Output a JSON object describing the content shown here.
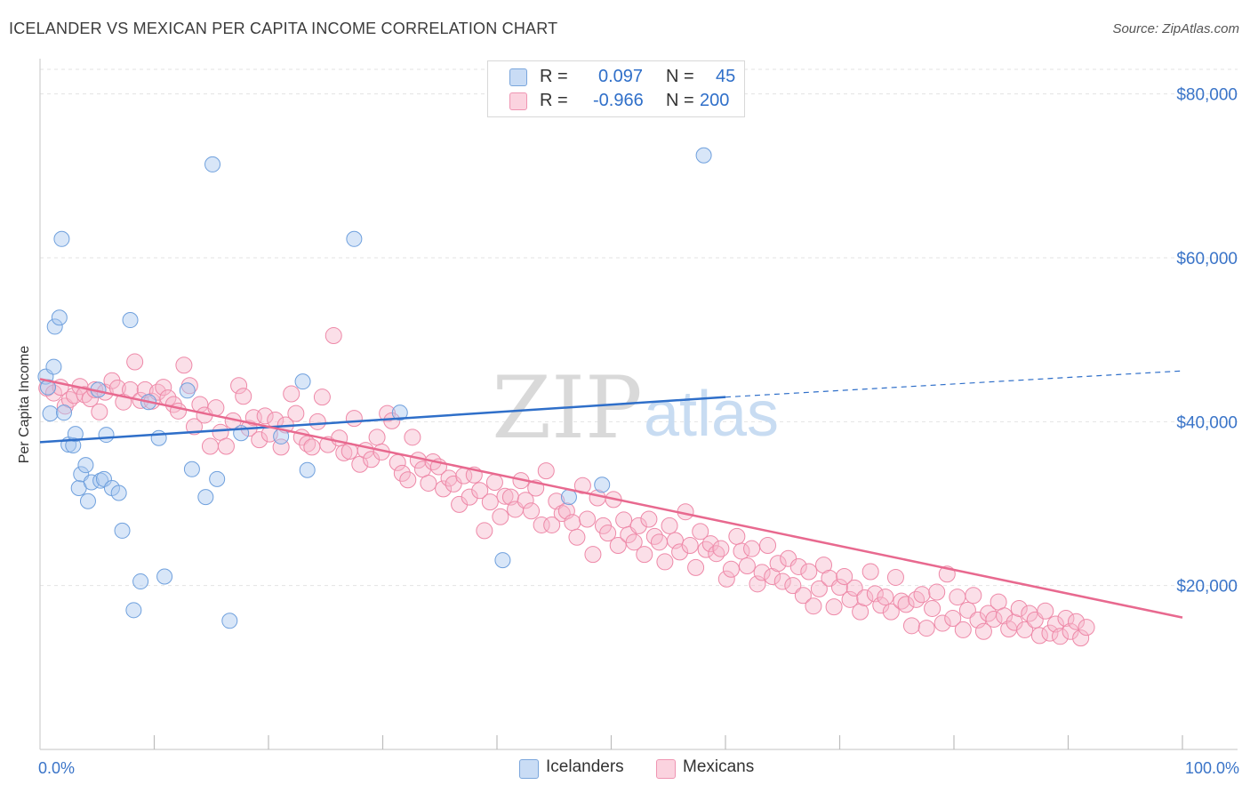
{
  "header": {
    "title": "ICELANDER VS MEXICAN PER CAPITA INCOME CORRELATION CHART",
    "source": "Source: ZipAtlas.com"
  },
  "stats": [
    {
      "label": "R =",
      "r": "0.097",
      "n_label": "N =",
      "n": "45",
      "color": "#a9c8f0"
    },
    {
      "label": "R =",
      "r": "-0.966",
      "n_label": "N =",
      "n": "200",
      "color": "#f6b8cc"
    }
  ],
  "legend": [
    {
      "name": "Icelanders",
      "color": "#a9c8f0"
    },
    {
      "name": "Mexicans",
      "color": "#f6b8cc"
    }
  ],
  "watermark": {
    "zip": "ZIP",
    "atlas": "atlas"
  },
  "chart_data": {
    "type": "scatter",
    "title": "ICELANDER VS MEXICAN PER CAPITA INCOME CORRELATION CHART",
    "xlabel": "",
    "ylabel": "Per Capita Income",
    "xlim": [
      0,
      100
    ],
    "ylim": [
      0,
      83000
    ],
    "x_tick_labels": [
      "0.0%",
      "100.0%"
    ],
    "y_ticks": [
      20000,
      40000,
      60000,
      80000
    ],
    "y_tick_labels": [
      "$20,000",
      "$40,000",
      "$60,000",
      "$80,000"
    ],
    "grid": "horizontal dashed",
    "legend_position": "bottom",
    "series": [
      {
        "name": "Icelanders",
        "color": "#a9c8f0",
        "edge": "#6fa0dd",
        "trend": {
          "x": [
            0,
            60
          ],
          "y": [
            37500,
            43000
          ],
          "dashed_to": [
            100,
            46200
          ],
          "color": "#2f6fc9"
        },
        "points": [
          [
            0.5,
            45500
          ],
          [
            0.7,
            44200
          ],
          [
            0.9,
            41000
          ],
          [
            1.2,
            46700
          ],
          [
            1.3,
            51600
          ],
          [
            1.7,
            52700
          ],
          [
            1.9,
            62300
          ],
          [
            2.1,
            41100
          ],
          [
            2.5,
            37200
          ],
          [
            2.9,
            37100
          ],
          [
            3.1,
            38500
          ],
          [
            3.4,
            31900
          ],
          [
            3.6,
            33600
          ],
          [
            4.0,
            34700
          ],
          [
            4.2,
            30300
          ],
          [
            4.5,
            32600
          ],
          [
            5.1,
            43900
          ],
          [
            5.3,
            32800
          ],
          [
            5.6,
            33000
          ],
          [
            5.8,
            38400
          ],
          [
            6.3,
            31900
          ],
          [
            6.9,
            31300
          ],
          [
            7.2,
            26700
          ],
          [
            7.9,
            52400
          ],
          [
            8.2,
            17000
          ],
          [
            8.8,
            20500
          ],
          [
            9.5,
            42400
          ],
          [
            10.4,
            38000
          ],
          [
            10.9,
            21100
          ],
          [
            12.9,
            43800
          ],
          [
            13.3,
            34200
          ],
          [
            14.5,
            30800
          ],
          [
            15.1,
            71400
          ],
          [
            15.5,
            33000
          ],
          [
            16.6,
            15700
          ],
          [
            17.6,
            38600
          ],
          [
            21.1,
            38200
          ],
          [
            23.0,
            44900
          ],
          [
            23.4,
            34100
          ],
          [
            27.5,
            62300
          ],
          [
            31.5,
            41100
          ],
          [
            40.5,
            23100
          ],
          [
            46.3,
            30800
          ],
          [
            49.2,
            32300
          ],
          [
            58.1,
            72500
          ]
        ]
      },
      {
        "name": "Mexicans",
        "color": "#f6b8cc",
        "edge": "#ee89a8",
        "trend": {
          "x": [
            0,
            100
          ],
          "y": [
            45200,
            16100
          ],
          "color": "#e8698f"
        },
        "points": [
          [
            0.6,
            44100
          ],
          [
            1.2,
            43500
          ],
          [
            1.8,
            44200
          ],
          [
            2.2,
            41900
          ],
          [
            2.6,
            42700
          ],
          [
            3.0,
            43200
          ],
          [
            3.5,
            44300
          ],
          [
            3.9,
            43300
          ],
          [
            4.4,
            42800
          ],
          [
            4.8,
            43900
          ],
          [
            5.2,
            41200
          ],
          [
            5.7,
            43600
          ],
          [
            6.3,
            45000
          ],
          [
            6.8,
            44100
          ],
          [
            7.3,
            42400
          ],
          [
            7.9,
            43900
          ],
          [
            8.3,
            47300
          ],
          [
            8.8,
            42600
          ],
          [
            9.2,
            43900
          ],
          [
            9.8,
            42500
          ],
          [
            10.3,
            43600
          ],
          [
            10.8,
            44200
          ],
          [
            11.2,
            42900
          ],
          [
            11.7,
            42100
          ],
          [
            12.1,
            41300
          ],
          [
            12.6,
            46900
          ],
          [
            13.1,
            44400
          ],
          [
            13.5,
            39400
          ],
          [
            14.0,
            42100
          ],
          [
            14.4,
            40800
          ],
          [
            14.9,
            37000
          ],
          [
            15.4,
            41700
          ],
          [
            15.8,
            38700
          ],
          [
            16.3,
            37000
          ],
          [
            16.9,
            40100
          ],
          [
            17.4,
            44400
          ],
          [
            17.8,
            43100
          ],
          [
            18.3,
            39200
          ],
          [
            18.7,
            40500
          ],
          [
            19.2,
            37800
          ],
          [
            19.7,
            40700
          ],
          [
            20.1,
            38500
          ],
          [
            20.6,
            40200
          ],
          [
            21.1,
            36900
          ],
          [
            21.5,
            39600
          ],
          [
            22.0,
            43400
          ],
          [
            22.4,
            41000
          ],
          [
            22.9,
            38100
          ],
          [
            23.4,
            37300
          ],
          [
            23.8,
            36900
          ],
          [
            24.3,
            40000
          ],
          [
            24.7,
            43000
          ],
          [
            25.2,
            37200
          ],
          [
            25.7,
            50500
          ],
          [
            26.2,
            38000
          ],
          [
            26.6,
            36200
          ],
          [
            27.1,
            36400
          ],
          [
            27.5,
            40400
          ],
          [
            28.0,
            34800
          ],
          [
            28.5,
            36500
          ],
          [
            29.0,
            35400
          ],
          [
            29.5,
            38100
          ],
          [
            29.9,
            36300
          ],
          [
            30.4,
            41000
          ],
          [
            30.8,
            40100
          ],
          [
            31.3,
            35000
          ],
          [
            31.7,
            33700
          ],
          [
            32.2,
            32900
          ],
          [
            32.6,
            38100
          ],
          [
            33.1,
            35300
          ],
          [
            33.5,
            34200
          ],
          [
            34.0,
            32500
          ],
          [
            34.4,
            35100
          ],
          [
            34.9,
            34500
          ],
          [
            35.3,
            31800
          ],
          [
            35.8,
            33100
          ],
          [
            36.2,
            32400
          ],
          [
            36.7,
            29900
          ],
          [
            37.1,
            33400
          ],
          [
            37.6,
            30800
          ],
          [
            38.0,
            33500
          ],
          [
            38.5,
            31600
          ],
          [
            38.9,
            26700
          ],
          [
            39.4,
            30200
          ],
          [
            39.8,
            32600
          ],
          [
            40.3,
            28400
          ],
          [
            40.7,
            30900
          ],
          [
            41.2,
            30800
          ],
          [
            41.6,
            29300
          ],
          [
            42.1,
            32800
          ],
          [
            42.5,
            30400
          ],
          [
            43.0,
            29100
          ],
          [
            43.4,
            31900
          ],
          [
            43.9,
            27400
          ],
          [
            44.3,
            34000
          ],
          [
            44.8,
            27400
          ],
          [
            45.2,
            30300
          ],
          [
            45.7,
            28800
          ],
          [
            46.1,
            29100
          ],
          [
            46.6,
            27700
          ],
          [
            47.0,
            25900
          ],
          [
            47.5,
            32200
          ],
          [
            47.9,
            28100
          ],
          [
            48.4,
            23800
          ],
          [
            48.8,
            30700
          ],
          [
            49.3,
            27300
          ],
          [
            49.7,
            26400
          ],
          [
            50.2,
            30500
          ],
          [
            50.6,
            24900
          ],
          [
            51.1,
            28000
          ],
          [
            51.5,
            26200
          ],
          [
            52.0,
            25300
          ],
          [
            52.4,
            27300
          ],
          [
            52.9,
            23800
          ],
          [
            53.3,
            28100
          ],
          [
            53.8,
            26000
          ],
          [
            54.2,
            25300
          ],
          [
            54.7,
            22900
          ],
          [
            55.1,
            27300
          ],
          [
            55.6,
            25500
          ],
          [
            56.0,
            24100
          ],
          [
            56.5,
            29000
          ],
          [
            56.9,
            24900
          ],
          [
            57.4,
            22200
          ],
          [
            57.8,
            26600
          ],
          [
            58.3,
            24400
          ],
          [
            58.7,
            25100
          ],
          [
            59.2,
            23900
          ],
          [
            59.6,
            24500
          ],
          [
            60.1,
            20800
          ],
          [
            60.5,
            22000
          ],
          [
            61.0,
            26000
          ],
          [
            61.4,
            24200
          ],
          [
            61.9,
            22400
          ],
          [
            62.3,
            24500
          ],
          [
            62.8,
            20200
          ],
          [
            63.2,
            21600
          ],
          [
            63.7,
            24900
          ],
          [
            64.1,
            21100
          ],
          [
            64.6,
            22700
          ],
          [
            65.0,
            20500
          ],
          [
            65.5,
            23300
          ],
          [
            65.9,
            20000
          ],
          [
            66.4,
            22300
          ],
          [
            66.8,
            18800
          ],
          [
            67.3,
            21700
          ],
          [
            67.7,
            17500
          ],
          [
            68.2,
            19600
          ],
          [
            68.6,
            22500
          ],
          [
            69.1,
            20900
          ],
          [
            69.5,
            17400
          ],
          [
            70.0,
            19800
          ],
          [
            70.4,
            21100
          ],
          [
            70.9,
            18300
          ],
          [
            71.3,
            19700
          ],
          [
            71.8,
            16800
          ],
          [
            72.2,
            18500
          ],
          [
            72.7,
            21700
          ],
          [
            73.1,
            19000
          ],
          [
            73.6,
            17600
          ],
          [
            74.0,
            18600
          ],
          [
            74.5,
            16800
          ],
          [
            74.9,
            21000
          ],
          [
            75.4,
            18100
          ],
          [
            75.8,
            17700
          ],
          [
            76.3,
            15100
          ],
          [
            76.7,
            18300
          ],
          [
            77.2,
            18900
          ],
          [
            77.6,
            14800
          ],
          [
            78.1,
            17200
          ],
          [
            78.5,
            19200
          ],
          [
            79.0,
            15400
          ],
          [
            79.4,
            21400
          ],
          [
            79.9,
            16000
          ],
          [
            80.3,
            18600
          ],
          [
            80.8,
            14600
          ],
          [
            81.2,
            17000
          ],
          [
            81.7,
            18800
          ],
          [
            82.1,
            15800
          ],
          [
            82.6,
            14400
          ],
          [
            83.0,
            16600
          ],
          [
            83.5,
            15900
          ],
          [
            83.9,
            18000
          ],
          [
            84.4,
            16300
          ],
          [
            84.8,
            14700
          ],
          [
            85.3,
            15500
          ],
          [
            85.7,
            17200
          ],
          [
            86.2,
            14600
          ],
          [
            86.6,
            16600
          ],
          [
            87.1,
            15800
          ],
          [
            87.5,
            13900
          ],
          [
            88.0,
            16900
          ],
          [
            88.4,
            14200
          ],
          [
            88.9,
            15300
          ],
          [
            89.3,
            13800
          ],
          [
            89.8,
            16000
          ],
          [
            90.2,
            14400
          ],
          [
            90.7,
            15600
          ],
          [
            91.1,
            13600
          ],
          [
            91.6,
            14900
          ]
        ]
      }
    ]
  }
}
